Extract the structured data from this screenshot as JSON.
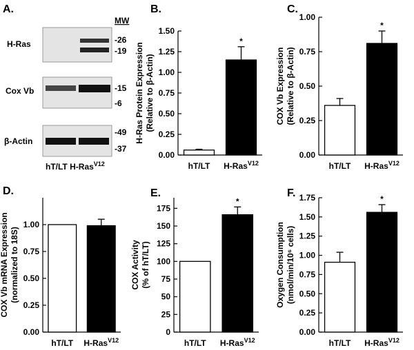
{
  "blot": {
    "label": "A.",
    "mw": "MW",
    "rows": [
      {
        "name": "H-Ras",
        "markers": [
          "-26",
          "-19"
        ]
      },
      {
        "name": "Cox Vb",
        "markers": [
          "-15",
          "-6"
        ]
      },
      {
        "name": "β-Actin",
        "markers": [
          "-49",
          "-37"
        ]
      }
    ],
    "lanes": "hT/LT",
    "lanes2": "H-Ras",
    "lanes2_sup": "V12"
  },
  "chart_data": [
    {
      "type": "bar",
      "label": "B.",
      "ylabel": [
        "H-Ras Protein Expression",
        "(Relative to β-Actin)"
      ],
      "categories": [
        "hT/LT",
        "H-Ras"
      ],
      "category_sup": [
        null,
        "V12"
      ],
      "values": [
        0.06,
        1.15
      ],
      "errors": [
        0.01,
        0.16
      ],
      "bar_labels": [
        null,
        "*"
      ],
      "colors": [
        "#ffffff",
        "#000000"
      ],
      "ylim": [
        0,
        1.5
      ],
      "yticks": [
        {
          "value": 0,
          "label": "0.00"
        },
        {
          "value": 0.25,
          "label": "0.25"
        },
        {
          "value": 0.5,
          "label": "0.50"
        },
        {
          "value": 0.75,
          "label": "0.75"
        },
        {
          "value": 1,
          "label": "1.00"
        },
        {
          "value": 1.25,
          "label": "1.25"
        },
        {
          "value": 1.5,
          "label": "1.50"
        }
      ]
    },
    {
      "type": "bar",
      "label": "C.",
      "ylabel": [
        "COX Vb Expression",
        "(Relative to β-Actin)"
      ],
      "categories": [
        "hT/LT",
        "H-Ras"
      ],
      "category_sup": [
        null,
        "V12"
      ],
      "values": [
        0.36,
        0.81
      ],
      "errors": [
        0.05,
        0.09
      ],
      "bar_labels": [
        null,
        "*"
      ],
      "colors": [
        "#ffffff",
        "#000000"
      ],
      "ylim": [
        0,
        1
      ],
      "yticks": [
        {
          "value": 0,
          "label": "0.00"
        },
        {
          "value": 0.25,
          "label": "0.25"
        },
        {
          "value": 0.5,
          "label": "0.50"
        },
        {
          "value": 0.75,
          "label": "0.75"
        },
        {
          "value": 1,
          "label": "1.00"
        }
      ]
    },
    {
      "type": "bar",
      "label": "D.",
      "ylabel": [
        "COX Vb mRNA Expression",
        "(normalized to 18S)"
      ],
      "categories": [
        "hT/LT",
        "H-Ras"
      ],
      "category_sup": [
        null,
        "V12"
      ],
      "values": [
        1,
        0.99
      ],
      "errors": [
        0,
        0.06
      ],
      "bar_labels": [
        null,
        null
      ],
      "colors": [
        "#ffffff",
        "#000000"
      ],
      "ylim": [
        0,
        1.25
      ],
      "yticks": [
        {
          "value": 0,
          "label": "0.00"
        },
        {
          "value": 0.25,
          "label": "0.25"
        },
        {
          "value": 0.5,
          "label": "0.50"
        },
        {
          "value": 0.75,
          "label": "0.75"
        },
        {
          "value": 1,
          "label": "1.00"
        }
      ]
    },
    {
      "type": "bar",
      "label": "E.",
      "ylabel": [
        "COX Activity",
        "(% of hT/LT)"
      ],
      "categories": [
        "hT/LT",
        "H-Ras"
      ],
      "category_sup": [
        null,
        "V12"
      ],
      "values": [
        100,
        166
      ],
      "errors": [
        0,
        11
      ],
      "bar_labels": [
        null,
        "*"
      ],
      "colors": [
        "#ffffff",
        "#000000"
      ],
      "ylim": [
        0,
        190
      ],
      "yticks": [
        0,
        25,
        50,
        75,
        100,
        125,
        150,
        175
      ]
    },
    {
      "type": "bar",
      "label": "F.",
      "ylabel": [
        "Oxygen Consumption",
        "(nmol/min/10⁶ cells)"
      ],
      "categories": [
        "hT/LT",
        "H-Ras"
      ],
      "category_sup": [
        null,
        "V12"
      ],
      "values": [
        0.91,
        1.56
      ],
      "errors": [
        0.13,
        0.1
      ],
      "bar_labels": [
        null,
        "*"
      ],
      "colors": [
        "#ffffff",
        "#000000"
      ],
      "ylim": [
        0,
        1.75
      ],
      "yticks": [
        {
          "value": 0,
          "label": "0.00"
        },
        {
          "value": 0.25,
          "label": "0.25"
        },
        {
          "value": 0.5,
          "label": "0.50"
        },
        {
          "value": 0.75,
          "label": "0.75"
        },
        {
          "value": 1,
          "label": "1.00"
        },
        {
          "value": 1.25,
          "label": "1.25"
        },
        {
          "value": 1.5,
          "label": "1.50"
        },
        {
          "value": 1.75,
          "label": "1.75"
        }
      ]
    }
  ]
}
